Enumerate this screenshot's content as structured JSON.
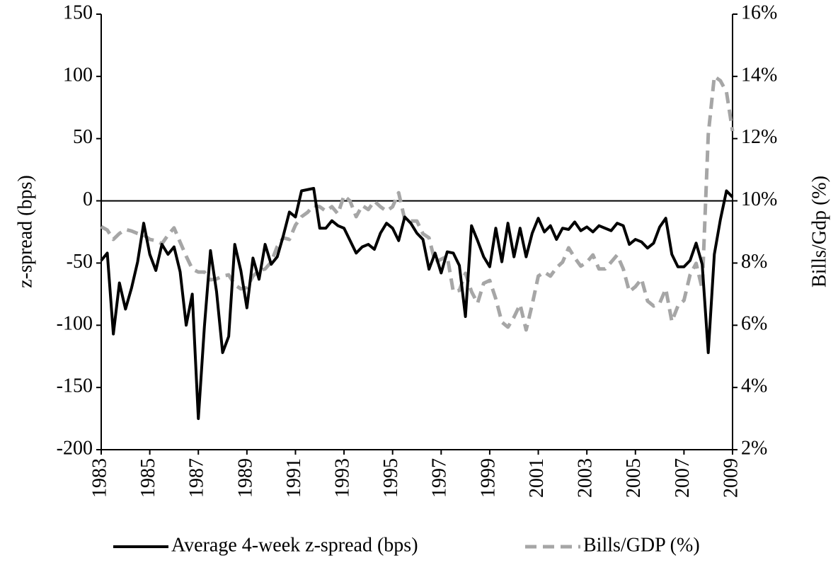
{
  "chart_data": {
    "type": "line",
    "y_label": "z-spread (bps)",
    "y2_label": "Bills/Gdp (%)",
    "xlim": [
      1983,
      2009
    ],
    "xticks": [
      1983,
      1985,
      1987,
      1989,
      1991,
      1993,
      1995,
      1997,
      1999,
      2001,
      2003,
      2005,
      2007,
      2009
    ],
    "ylim": [
      -200,
      150
    ],
    "yticks": [
      -200,
      -150,
      -100,
      -50,
      0,
      50,
      100,
      150
    ],
    "y2lim": [
      2,
      16
    ],
    "y2ticks": [
      {
        "value": 2,
        "label": "2%"
      },
      {
        "value": 4,
        "label": "4%"
      },
      {
        "value": 6,
        "label": "6%"
      },
      {
        "value": 8,
        "label": "8%"
      },
      {
        "value": 10,
        "label": "10%"
      },
      {
        "value": 12,
        "label": "12%"
      },
      {
        "value": 14,
        "label": "14%"
      },
      {
        "value": 16,
        "label": "16%"
      }
    ],
    "legend": "bottom",
    "x": [
      1983,
      1983.25,
      1983.5,
      1983.75,
      1984,
      1984.25,
      1984.5,
      1984.75,
      1985,
      1985.25,
      1985.5,
      1985.75,
      1986,
      1986.25,
      1986.5,
      1986.75,
      1987,
      1987.25,
      1987.5,
      1987.75,
      1988,
      1988.25,
      1988.5,
      1988.75,
      1989,
      1989.25,
      1989.5,
      1989.75,
      1990,
      1990.25,
      1990.5,
      1990.75,
      1991,
      1991.25,
      1991.5,
      1991.75,
      1992,
      1992.25,
      1992.5,
      1992.75,
      1993,
      1993.25,
      1993.5,
      1993.75,
      1994,
      1994.25,
      1994.5,
      1994.75,
      1995,
      1995.25,
      1995.5,
      1995.75,
      1996,
      1996.25,
      1996.5,
      1996.75,
      1997,
      1997.25,
      1997.5,
      1997.75,
      1998,
      1998.25,
      1998.5,
      1998.75,
      1999,
      1999.25,
      1999.5,
      1999.75,
      2000,
      2000.25,
      2000.5,
      2000.75,
      2001,
      2001.25,
      2001.5,
      2001.75,
      2002,
      2002.25,
      2002.5,
      2002.75,
      2003,
      2003.25,
      2003.5,
      2003.75,
      2004,
      2004.25,
      2004.5,
      2004.75,
      2005,
      2005.25,
      2005.5,
      2005.75,
      2006,
      2006.25,
      2006.5,
      2006.75,
      2007,
      2007.25,
      2007.5,
      2007.75,
      2008,
      2008.25,
      2008.5,
      2008.75,
      2009
    ],
    "series": [
      {
        "name": "Average 4-week z-spread (bps)",
        "color": "#000000",
        "dash": false,
        "values": [
          -48,
          -42,
          -107,
          -66,
          -87,
          -70,
          -49,
          -18,
          -43,
          -56,
          -35,
          -43,
          -37,
          -57,
          -100,
          -75,
          -175,
          -101,
          -40,
          -73,
          -122,
          -109,
          -35,
          -56,
          -86,
          -46,
          -63,
          -35,
          -51,
          -45,
          -28,
          -9,
          -13,
          8,
          9,
          10,
          -22,
          -22,
          -16,
          -20,
          -22,
          -32,
          -42,
          -37,
          -35,
          -39,
          -26,
          -18,
          -22,
          -32,
          -13,
          -18,
          -26,
          -31,
          -55,
          -42,
          -58,
          -41,
          -42,
          -52,
          -93,
          -20,
          -32,
          -45,
          -53,
          -22,
          -49,
          -18,
          -45,
          -22,
          -45,
          -26,
          -14,
          -25,
          -20,
          -31,
          -22,
          -23,
          -17,
          -24,
          -21,
          -25,
          -20,
          -22,
          -24,
          -18,
          -20,
          -35,
          -31,
          -33,
          -38,
          -34,
          -21,
          -14,
          -43,
          -53,
          -53,
          -48,
          -34,
          -51,
          -122,
          -43,
          -15,
          8,
          3
        ]
      },
      {
        "name": "Bills/GDP (%)",
        "color": "#a6a6a6",
        "dash": true,
        "axis": "y2",
        "values": [
          9.17,
          9.06,
          8.76,
          8.95,
          9.08,
          9.03,
          8.95,
          8.9,
          8.76,
          8.72,
          8.62,
          8.9,
          9.13,
          8.67,
          8.22,
          7.81,
          7.71,
          7.71,
          7.46,
          7.49,
          7.58,
          7.62,
          7.3,
          7.17,
          7.21,
          7.58,
          7.76,
          7.81,
          8.03,
          8.53,
          8.81,
          8.76,
          9.22,
          9.49,
          9.63,
          9.85,
          9.81,
          9.67,
          9.81,
          9.58,
          10.17,
          9.99,
          9.49,
          9.85,
          9.72,
          9.99,
          9.81,
          9.67,
          9.81,
          10.26,
          9.4,
          9.35,
          9.35,
          8.94,
          8.81,
          8.03,
          8.12,
          8.22,
          7.08,
          7.12,
          7.67,
          7.08,
          6.71,
          7.35,
          7.44,
          6.85,
          6.1,
          5.94,
          6.26,
          6.67,
          5.85,
          6.67,
          7.58,
          7.71,
          7.58,
          7.85,
          8.03,
          8.49,
          8.17,
          7.9,
          8.03,
          8.26,
          7.81,
          7.81,
          8.03,
          8.26,
          7.81,
          7.08,
          7.24,
          7.49,
          6.78,
          6.62,
          6.71,
          7.17,
          6.12,
          6.62,
          6.8,
          7.62,
          7.99,
          7.17,
          12.13,
          14.0,
          13.86,
          13.5,
          12.24
        ]
      }
    ]
  }
}
